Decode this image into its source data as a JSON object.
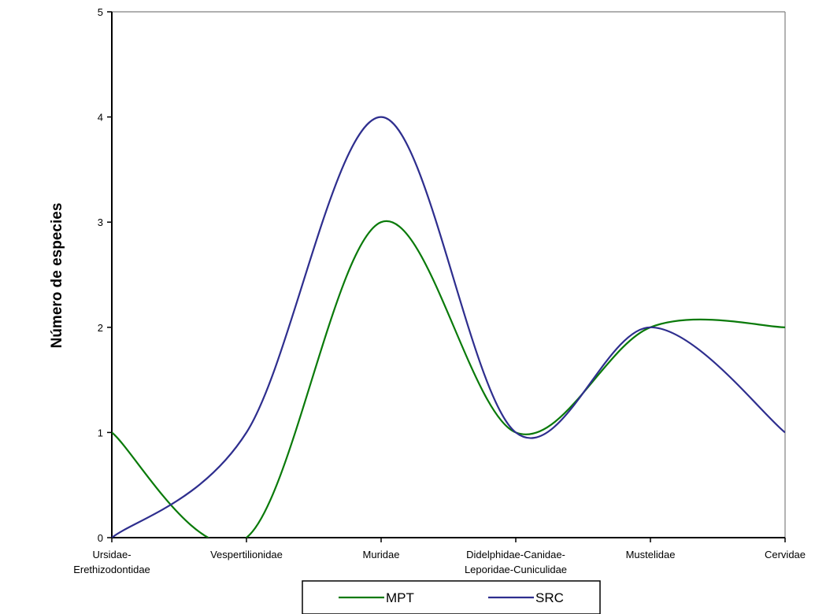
{
  "chart_data": {
    "type": "line",
    "smoothed": true,
    "ylabel": "Número de especies",
    "xlabel": "",
    "ylim": [
      0,
      5
    ],
    "yticks": [
      0,
      1,
      2,
      3,
      4,
      5
    ],
    "categories": [
      [
        "Ursidae-",
        "Erethizodontidae"
      ],
      [
        "Vespertilionidae"
      ],
      [
        "Muridae"
      ],
      [
        "Didelphidae-Canidae-",
        "Leporidae-Cuniculidae"
      ],
      [
        "Mustelidae"
      ],
      [
        "Cervidae"
      ]
    ],
    "series": [
      {
        "name": "MPT",
        "color": "#0a7a0a",
        "values": [
          1,
          0,
          3,
          1,
          2,
          2
        ]
      },
      {
        "name": "SRC",
        "color": "#2e2e8e",
        "values": [
          0,
          1,
          4,
          1,
          2,
          1
        ]
      }
    ],
    "grid": false,
    "legend": "bottom"
  }
}
